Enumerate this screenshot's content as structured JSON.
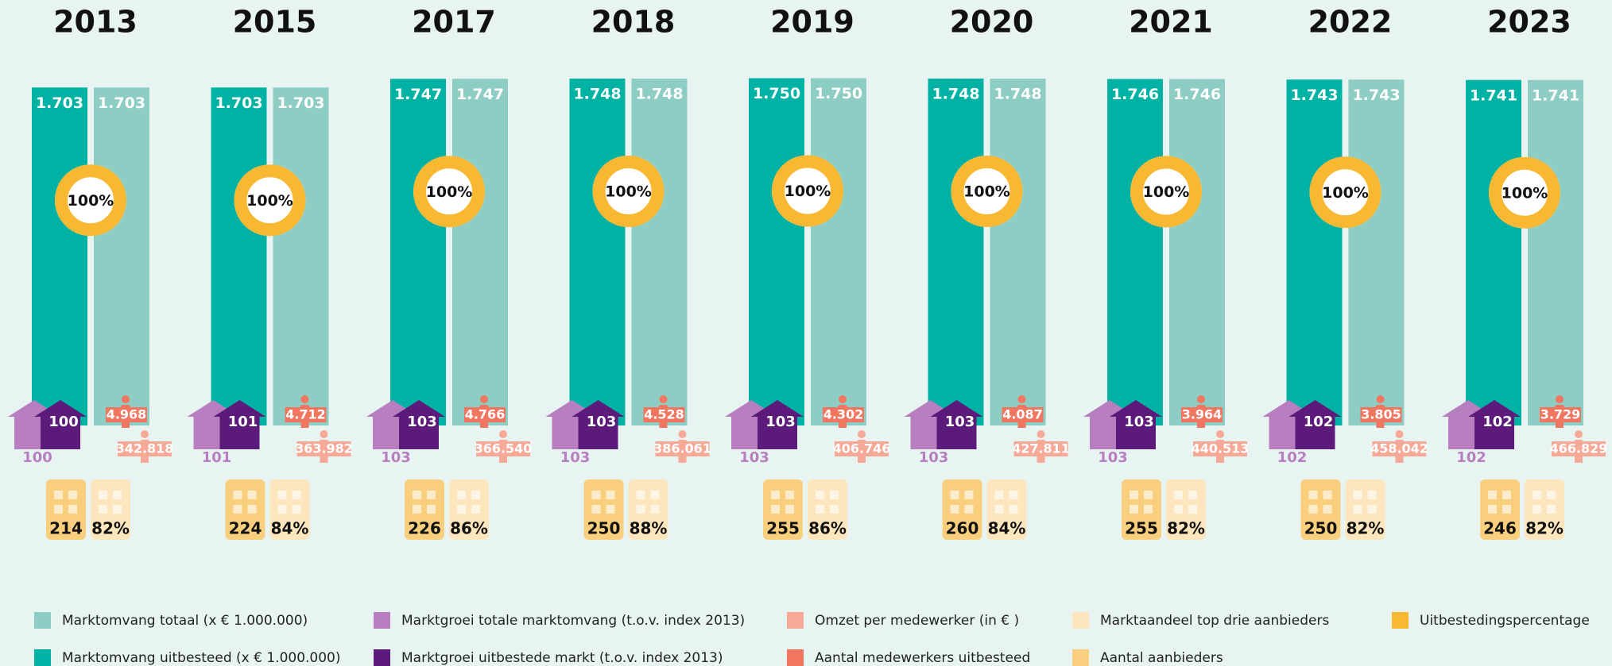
{
  "chart_data": {
    "type": "infographic",
    "categories": [
      "2013",
      "2015",
      "2017",
      "2018",
      "2019",
      "2020",
      "2021",
      "2022",
      "2023"
    ],
    "series": [
      {
        "name": "Marktomvang totaal (x € 1.000.000)",
        "color": "#8ecdc3",
        "values": [
          1703,
          1703,
          1747,
          1748,
          1750,
          1748,
          1746,
          1743,
          1741
        ],
        "value_labels": [
          "1.703",
          "1.703",
          "1.747",
          "1.748",
          "1.750",
          "1.748",
          "1.746",
          "1.743",
          "1.741"
        ]
      },
      {
        "name": "Marktomvang uitbesteed (x € 1.000.000)",
        "color": "#00b2a4",
        "values": [
          1703,
          1703,
          1747,
          1748,
          1750,
          1748,
          1746,
          1743,
          1741
        ],
        "value_labels": [
          "1.703",
          "1.703",
          "1.747",
          "1.748",
          "1.750",
          "1.748",
          "1.746",
          "1.743",
          "1.741"
        ]
      },
      {
        "name": "Marktgroei totale marktomvang (t.o.v. index 2013)",
        "color": "#b77fbf",
        "values": [
          100,
          101,
          103,
          103,
          103,
          103,
          103,
          102,
          102
        ]
      },
      {
        "name": "Marktgroei uitbestede markt (t.o.v. index 2013)",
        "color": "#5c1a7a",
        "values": [
          100,
          101,
          103,
          103,
          103,
          103,
          103,
          102,
          102
        ]
      },
      {
        "name": "Omzet per medewerker (in € )",
        "color": "#f7a998",
        "values": [
          342818,
          363982,
          366540,
          386061,
          406746,
          427811,
          440513,
          458042,
          466829
        ],
        "value_labels": [
          "342.818",
          "363.982",
          "366.540",
          "386.061",
          "406.746",
          "427.811",
          "440.513",
          "458.042",
          "466.829"
        ]
      },
      {
        "name": "Aantal medewerkers uitbesteed",
        "color": "#f07660",
        "values": [
          4968,
          4712,
          4766,
          4528,
          4302,
          4087,
          3964,
          3805,
          3729
        ],
        "value_labels": [
          "4.968",
          "4.712",
          "4.766",
          "4.528",
          "4.302",
          "4.087",
          "3.964",
          "3.805",
          "3.729"
        ]
      },
      {
        "name": "Marktaandeel top drie aanbieders",
        "color": "#fde6bd",
        "values": [
          82,
          84,
          86,
          88,
          86,
          84,
          82,
          82,
          82
        ],
        "value_labels": [
          "82%",
          "84%",
          "86%",
          "88%",
          "86%",
          "84%",
          "82%",
          "82%",
          "82%"
        ]
      },
      {
        "name": "Aantal aanbieders",
        "color": "#f9cf7e",
        "values": [
          214,
          224,
          226,
          250,
          255,
          260,
          255,
          250,
          246
        ]
      },
      {
        "name": "Uitbestedingspercentage",
        "color": "#f8b832",
        "values": [
          100,
          100,
          100,
          100,
          100,
          100,
          100,
          100,
          100
        ],
        "value_labels": [
          "100%",
          "100%",
          "100%",
          "100%",
          "100%",
          "100%",
          "100%",
          "100%",
          "100%"
        ]
      }
    ]
  }
}
